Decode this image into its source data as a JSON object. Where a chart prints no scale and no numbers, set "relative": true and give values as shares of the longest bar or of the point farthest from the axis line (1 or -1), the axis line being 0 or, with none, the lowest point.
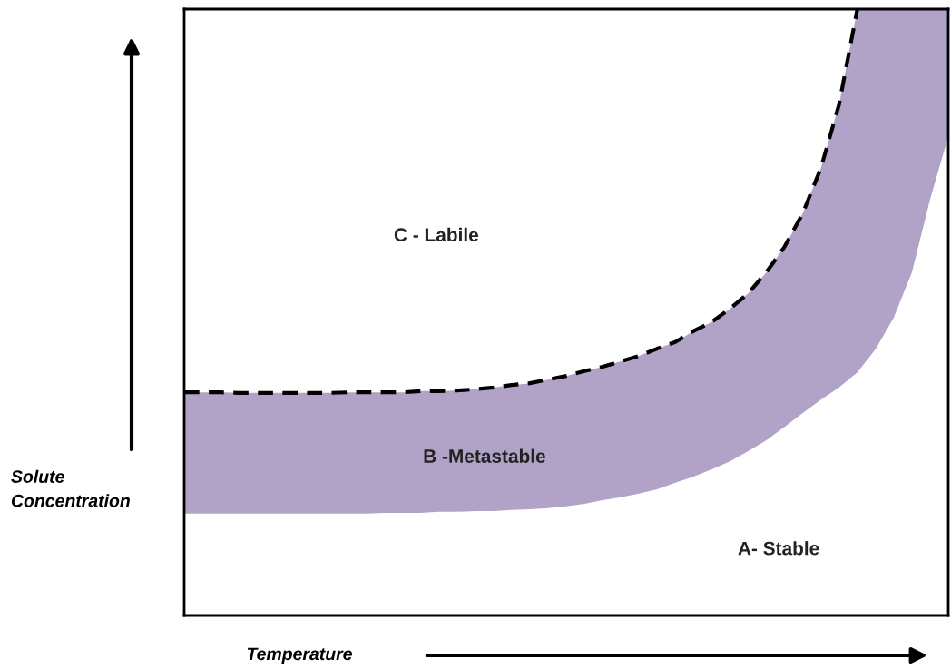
{
  "chart_data": {
    "type": "line",
    "relative": true,
    "xlabel": "Temperature",
    "ylabel": "Solute\nConcentration",
    "line_style": "dashed",
    "categories": [
      null,
      null,
      null,
      null,
      null,
      null,
      null,
      null,
      null,
      null,
      null,
      null,
      null,
      null,
      null,
      null,
      null,
      null,
      null,
      null,
      null,
      null,
      null,
      null,
      null,
      null,
      null,
      null,
      null,
      null,
      null,
      null,
      null,
      null,
      null,
      null,
      null,
      null,
      null,
      null,
      null,
      null,
      null
    ],
    "series": [
      {
        "color": "#000000",
        "values": [
          0.368,
          0.368,
          0.368,
          0.367,
          0.367,
          0.367,
          0.367,
          0.367,
          0.367,
          0.368,
          0.368,
          0.368,
          0.368,
          0.37,
          0.37,
          0.371,
          0.373,
          0.376,
          0.38,
          0.383,
          0.389,
          0.395,
          0.403,
          0.41,
          0.419,
          0.428,
          0.44,
          0.451,
          0.469,
          0.484,
          0.506,
          0.531,
          0.566,
          0.608,
          0.663,
          0.738,
          0.843,
          1,
          null,
          null,
          null,
          null,
          null
        ],
        "upper": [
          0.368,
          0.368,
          0.368,
          0.367,
          0.367,
          0.367,
          0.367,
          0.367,
          0.367,
          0.368,
          0.368,
          0.368,
          0.368,
          0.37,
          0.37,
          0.371,
          0.373,
          0.376,
          0.38,
          0.383,
          0.389,
          0.395,
          0.403,
          0.41,
          0.419,
          0.428,
          0.44,
          0.451,
          0.469,
          0.484,
          0.506,
          0.531,
          0.566,
          0.608,
          0.663,
          0.738,
          0.843,
          1,
          1,
          1,
          1,
          1,
          1
        ],
        "lower": [
          0.168,
          0.168,
          0.168,
          0.168,
          0.168,
          0.168,
          0.168,
          0.168,
          0.168,
          0.168,
          0.168,
          0.169,
          0.169,
          0.169,
          0.171,
          0.171,
          0.172,
          0.172,
          0.174,
          0.175,
          0.177,
          0.18,
          0.184,
          0.19,
          0.195,
          0.201,
          0.208,
          0.219,
          0.229,
          0.241,
          0.254,
          0.271,
          0.289,
          0.311,
          0.334,
          0.356,
          0.376,
          0.401,
          0.439,
          0.491,
          0.566,
          0.686,
          0.79
        ]
      }
    ],
    "annotations": [
      "C - Labile",
      "B -Metastable",
      "A- Stable"
    ]
  }
}
